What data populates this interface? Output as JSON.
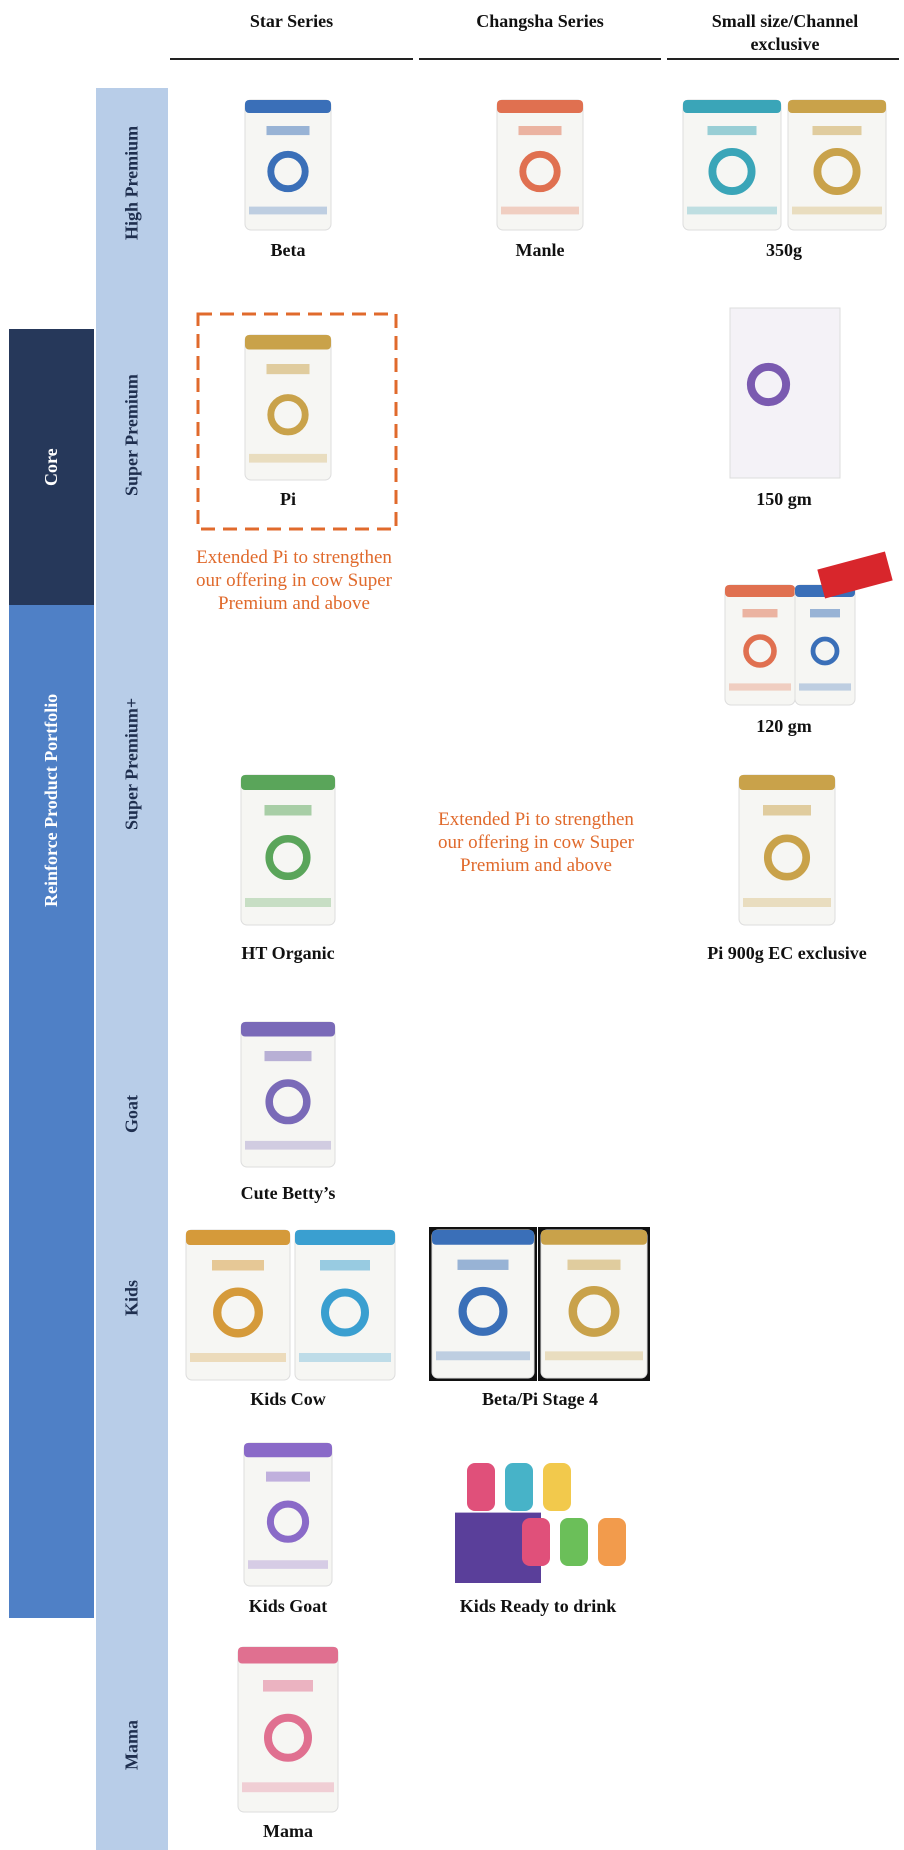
{
  "header": {
    "columns": [
      "Star Series",
      "Changsha Series",
      "Small size/Channel exclusive"
    ]
  },
  "groups": [
    "Core",
    "Reinforce Product Portfolio"
  ],
  "rows": [
    "High Premium",
    "Super Premium",
    "Super Premium+",
    "Goat",
    "Kids",
    "Mama"
  ],
  "products": [
    {
      "name": "Beta"
    },
    {
      "name": "Manle"
    },
    {
      "name": "350g"
    },
    {
      "name": "Pi"
    },
    {
      "name": "150 gm"
    },
    {
      "name": "120 gm"
    },
    {
      "name": "HT Organic"
    },
    {
      "name": "Pi 900g EC exclusive"
    },
    {
      "name": "Cute Betty’s"
    },
    {
      "name": "Kids Cow"
    },
    {
      "name": "Beta/Pi Stage 4"
    },
    {
      "name": "Kids Goat"
    },
    {
      "name": "Kids Ready to drink"
    },
    {
      "name": "Mama"
    }
  ],
  "annotations": [
    "Extended Pi to strengthen our offering in cow Super Premium and above",
    "Extended Pi to strengthen our offering in cow Super Premium and above"
  ]
}
